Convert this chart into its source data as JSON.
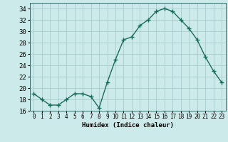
{
  "x": [
    0,
    1,
    2,
    3,
    4,
    5,
    6,
    7,
    8,
    9,
    10,
    11,
    12,
    13,
    14,
    15,
    16,
    17,
    18,
    19,
    20,
    21,
    22,
    23
  ],
  "y": [
    19,
    18,
    17,
    17,
    18,
    19,
    19,
    18.5,
    16.5,
    21,
    25,
    28.5,
    29,
    31,
    32,
    33.5,
    34,
    33.5,
    32,
    30.5,
    28.5,
    25.5,
    23,
    21
  ],
  "xlabel": "Humidex (Indice chaleur)",
  "ylim": [
    16,
    35
  ],
  "xlim": [
    -0.5,
    23.5
  ],
  "yticks": [
    16,
    18,
    20,
    22,
    24,
    26,
    28,
    30,
    32,
    34
  ],
  "xticks": [
    0,
    1,
    2,
    3,
    4,
    5,
    6,
    7,
    8,
    9,
    10,
    11,
    12,
    13,
    14,
    15,
    16,
    17,
    18,
    19,
    20,
    21,
    22,
    23
  ],
  "xtick_labels": [
    "0",
    "1",
    "2",
    "3",
    "4",
    "5",
    "6",
    "7",
    "8",
    "9",
    "10",
    "11",
    "12",
    "13",
    "14",
    "15",
    "16",
    "17",
    "18",
    "19",
    "20",
    "21",
    "22",
    "23"
  ],
  "line_color": "#1a6b5a",
  "marker_color": "#1a6b5a",
  "bg_color": "#cceaea",
  "grid_color": "#aacccc",
  "xlabel_fontsize": 6.5,
  "ytick_fontsize": 6.5,
  "xtick_fontsize": 5.5
}
